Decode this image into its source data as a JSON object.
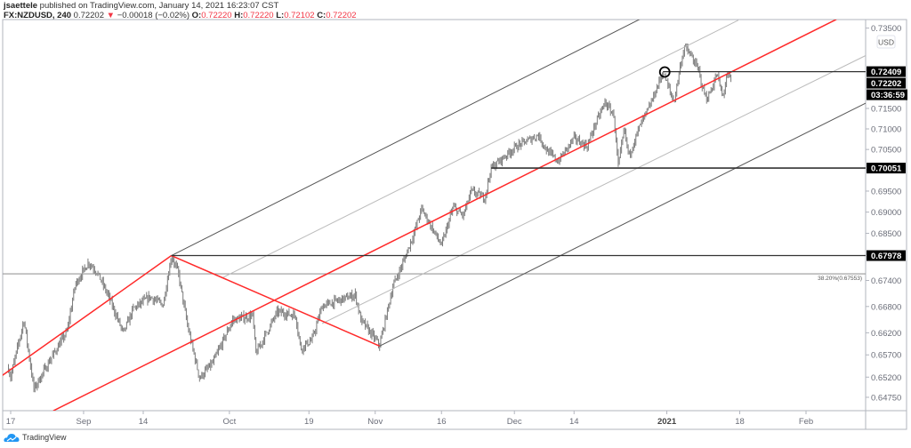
{
  "header": {
    "author": "jsaettele",
    "published": "published on TradingView.com, January 14, 2021 16:23:07 CST",
    "symbol": "FX:NZDUSD, 240",
    "last": "0.72202",
    "change": "−0.00018 (−0.02%)",
    "change_icon": "triangle-down-icon",
    "o_label": "O:",
    "o": "0.72220",
    "h_label": "H:",
    "h": "0.72220",
    "l_label": "L:",
    "l": "0.72102",
    "c_label": "C:",
    "c": "0.72202"
  },
  "footer": {
    "brand": "TradingView",
    "icon": "tradingview-cloud-icon"
  },
  "colors": {
    "bars": "#7a7a7a",
    "pitchfork": "#ff2a2a",
    "lines_dark": "#555555",
    "lines_light": "#bbbbbb",
    "tag_bg": "#000000",
    "down": "#f23645"
  },
  "chart_data": {
    "type": "bar",
    "scale": "log",
    "timeframe": "240",
    "currency": "USD",
    "currency_badge": "USD",
    "ylim": [
      0.644,
      0.738
    ],
    "y_ticks": [
      "0.73500",
      "0.71500",
      "0.71000",
      "0.70500",
      "0.69500",
      "0.69000",
      "0.68500",
      "0.67400",
      "0.66800",
      "0.66200",
      "0.65700",
      "0.65200",
      "0.64750"
    ],
    "x_ticks": [
      {
        "date": "2020-08-17",
        "label": "17"
      },
      {
        "date": "2020-09-01",
        "label": "Sep"
      },
      {
        "date": "2020-09-14",
        "label": "14"
      },
      {
        "date": "2020-10-01",
        "label": "Oct"
      },
      {
        "date": "2020-10-19",
        "label": "19"
      },
      {
        "date": "2020-11-02",
        "label": "Nov"
      },
      {
        "date": "2020-11-16",
        "label": "16"
      },
      {
        "date": "2020-12-01",
        "label": "Dec"
      },
      {
        "date": "2020-12-14",
        "label": "14"
      },
      {
        "date": "2021-01-01",
        "label": "2021",
        "bold": true
      },
      {
        "date": "2021-01-18",
        "label": "18"
      },
      {
        "date": "2021-02-01",
        "label": "Feb"
      }
    ],
    "price_path": [
      [
        "2020-08-14 16:00",
        0.654
      ],
      [
        "2020-08-17 00:00",
        0.652
      ],
      [
        "2020-08-19 00:00",
        0.6649
      ],
      [
        "2020-08-20 12:00",
        0.6493
      ],
      [
        "2020-08-25 00:00",
        0.656
      ],
      [
        "2020-08-27 12:00",
        0.6623
      ],
      [
        "2020-08-28 18:00",
        0.6731
      ],
      [
        "2020-09-01 18:00",
        0.6782
      ],
      [
        "2020-09-03 00:00",
        0.676
      ],
      [
        "2020-09-04 18:00",
        0.6704
      ],
      [
        "2020-09-09 00:00",
        0.6619
      ],
      [
        "2020-09-10 12:00",
        0.6675
      ],
      [
        "2020-09-15 00:00",
        0.6702
      ],
      [
        "2020-09-17 00:00",
        0.6684
      ],
      [
        "2020-09-18 06:00",
        0.6797
      ],
      [
        "2020-09-21 06:00",
        0.676
      ],
      [
        "2020-09-22 18:00",
        0.663
      ],
      [
        "2020-09-24 12:00",
        0.6518
      ],
      [
        "2020-09-28 12:00",
        0.6552
      ],
      [
        "2020-10-01 12:00",
        0.6649
      ],
      [
        "2020-10-06 12:00",
        0.6659
      ],
      [
        "2020-10-07 00:00",
        0.6573
      ],
      [
        "2020-10-12 06:00",
        0.6668
      ],
      [
        "2020-10-15 00:00",
        0.6659
      ],
      [
        "2020-10-15 18:00",
        0.6584
      ],
      [
        "2020-10-19 12:00",
        0.6605
      ],
      [
        "2020-10-21 00:00",
        0.6681
      ],
      [
        "2020-10-28 00:00",
        0.6707
      ],
      [
        "2020-10-28 20:00",
        0.6649
      ],
      [
        "2020-11-02 16:00",
        0.6592
      ],
      [
        "2020-11-04 16:00",
        0.6726
      ],
      [
        "2020-11-06 12:00",
        0.6793
      ],
      [
        "2020-11-09 20:00",
        0.685
      ],
      [
        "2020-11-11 00:00",
        0.6908
      ],
      [
        "2020-11-16 00:00",
        0.6821
      ],
      [
        "2020-11-17 18:00",
        0.6912
      ],
      [
        "2020-11-19 06:00",
        0.6891
      ],
      [
        "2020-11-20 12:00",
        0.695
      ],
      [
        "2020-11-24 12:00",
        0.6934
      ],
      [
        "2020-11-25 12:00",
        0.7005
      ],
      [
        "2020-12-01 06:00",
        0.7057
      ],
      [
        "2020-12-04 14:00",
        0.7085
      ],
      [
        "2020-12-07 22:00",
        0.7047
      ],
      [
        "2020-12-09 14:00",
        0.7021
      ],
      [
        "2020-12-14 00:00",
        0.7078
      ],
      [
        "2020-12-16 00:00",
        0.7057
      ],
      [
        "2020-12-16 22:00",
        0.71
      ],
      [
        "2020-12-18 16:00",
        0.7165
      ],
      [
        "2020-12-22 00:00",
        0.7133
      ],
      [
        "2020-12-22 16:00",
        0.7008
      ],
      [
        "2020-12-23 14:00",
        0.71
      ],
      [
        "2020-12-24 06:00",
        0.7034
      ],
      [
        "2020-12-28 00:00",
        0.711
      ],
      [
        "2020-12-29 10:00",
        0.7155
      ],
      [
        "2020-12-31 10:00",
        0.724
      ],
      [
        "2021-01-01 08:00",
        0.7198
      ],
      [
        "2021-01-04 02:00",
        0.7165
      ],
      [
        "2021-01-05 00:00",
        0.7253
      ],
      [
        "2021-01-05 16:00",
        0.7304
      ],
      [
        "2021-01-06 20:00",
        0.7275
      ],
      [
        "2021-01-07 20:00",
        0.7242
      ],
      [
        "2021-01-08 10:00",
        0.7198
      ],
      [
        "2021-01-11 02:00",
        0.7172
      ],
      [
        "2021-01-12 00:00",
        0.7209
      ],
      [
        "2021-01-12 14:00",
        0.7236
      ],
      [
        "2021-01-13 10:00",
        0.7176
      ],
      [
        "2021-01-14 02:00",
        0.7233
      ],
      [
        "2021-01-14 16:00",
        0.72202
      ]
    ],
    "drawings": {
      "pitchfork_handle_ab": {
        "from": [
          "2020-08-13 00:00",
          0.6516
        ],
        "to": [
          "2020-09-18 06:00",
          0.67978
        ]
      },
      "pitchfork_handle_bc": {
        "from": [
          "2020-09-18 06:00",
          0.67978
        ],
        "to": [
          "2020-11-02 16:00",
          0.659
        ]
      },
      "pitchfork_median": {
        "from": [
          "2020-08-25 10:00",
          0.6445
        ],
        "to": [
          "2021-02-05 14:00",
          0.7372
        ]
      },
      "pitchfork_upper": {
        "from": [
          "2020-09-18 06:00",
          0.67978
        ],
        "to": [
          "2020-12-28 00:00",
          0.7373
        ]
      },
      "pitchfork_lower": {
        "from": [
          "2020-11-02 16:00",
          0.659
        ],
        "to": [
          "2021-02-12 00:00",
          0.7163
        ]
      },
      "pitchfork_inner_upper": {
        "from": [
          "2020-09-29 22:00",
          0.6746
        ],
        "to": [
          "2021-01-15 19:00",
          0.737
        ]
      },
      "pitchfork_inner_lower": {
        "from": [
          "2020-10-21 00:00",
          0.6641
        ],
        "to": [
          "2021-02-12 00:00",
          0.7281
        ]
      },
      "hlines": [
        {
          "price": 0.72409,
          "from": "2020-12-31 10:00",
          "label": "0.72409"
        },
        {
          "price": 0.70051,
          "from": "2020-11-25 12:00",
          "label": "0.70051"
        },
        {
          "price": 0.67978,
          "from": "2020-09-18 06:00",
          "label": "0.67978"
        }
      ],
      "fib_line": {
        "price": 0.67553,
        "label": "38.20%(0.67553)"
      },
      "circle_marker": [
        "2020-12-31 10:00",
        0.724
      ]
    },
    "last_price_label": "0.72202",
    "countdown": "03:36:59"
  }
}
